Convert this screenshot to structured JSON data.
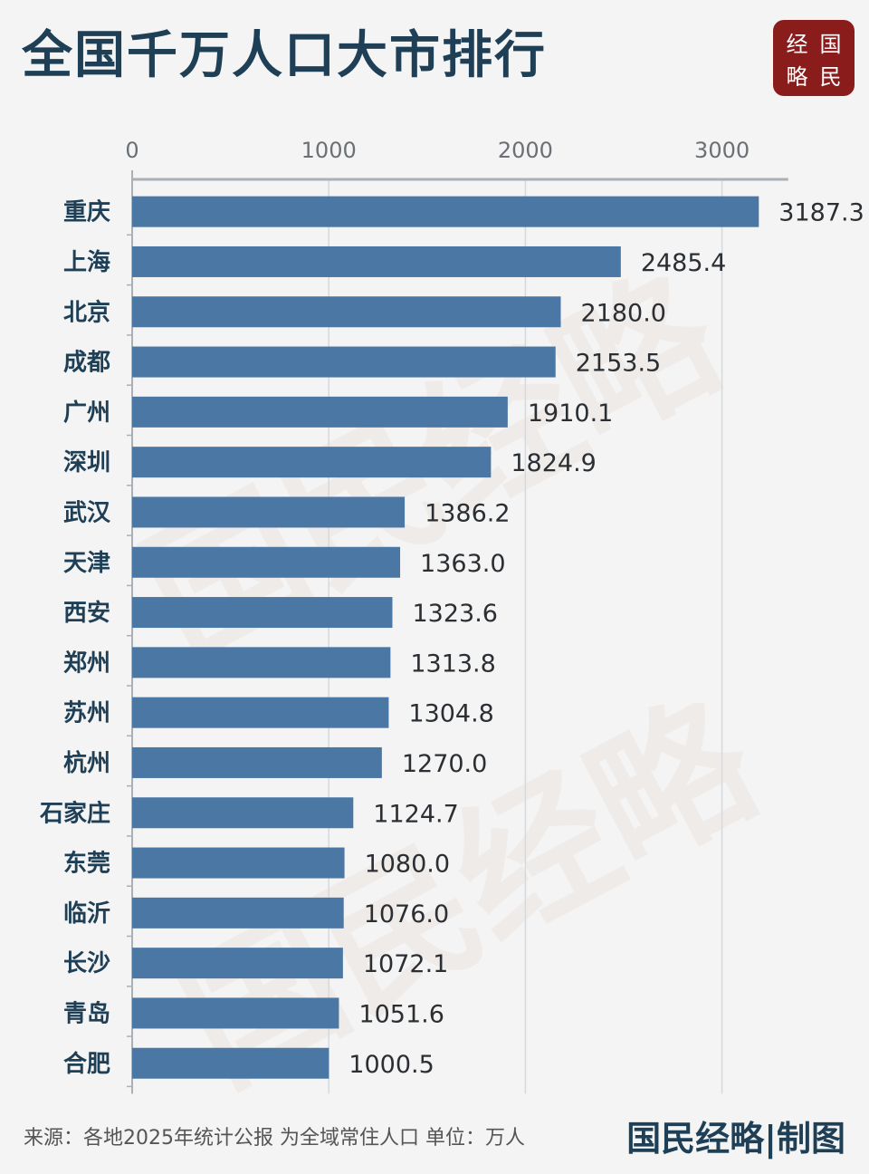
{
  "header": {
    "title": "全国千万人口大市排行",
    "logo": [
      "经",
      "国",
      "略",
      "民"
    ]
  },
  "watermark": {
    "text": "国民经略"
  },
  "chart_data": {
    "type": "bar",
    "orientation": "horizontal",
    "title": "全国千万人口大市排行",
    "xlabel": "",
    "ylabel": "",
    "xlim": [
      0,
      3300
    ],
    "x_ticks": [
      0,
      1000,
      2000,
      3000
    ],
    "x_tick_labels": [
      "0",
      "1000",
      "2000",
      "3000"
    ],
    "grid": true,
    "bar_color": "#4b77a4",
    "categories": [
      "重庆",
      "上海",
      "北京",
      "成都",
      "广州",
      "深圳",
      "武汉",
      "天津",
      "西安",
      "郑州",
      "苏州",
      "杭州",
      "石家庄",
      "东莞",
      "临沂",
      "长沙",
      "青岛",
      "合肥"
    ],
    "values": [
      3187.3,
      2485.4,
      2180.0,
      2153.5,
      1910.1,
      1824.9,
      1386.2,
      1363.0,
      1323.6,
      1313.8,
      1304.8,
      1270.0,
      1124.7,
      1080.0,
      1076.0,
      1072.1,
      1051.6,
      1000.5
    ],
    "value_labels": [
      "3187.3",
      "2485.4",
      "2180.0",
      "2153.5",
      "1910.1",
      "1824.9",
      "1386.2",
      "1363.0",
      "1323.6",
      "1313.8",
      "1304.8",
      "1270.0",
      "1124.7",
      "1080.0",
      "1076.0",
      "1072.1",
      "1051.6",
      "1000.5"
    ]
  },
  "footer": {
    "source": "来源：各地2025年统计公报 为全域常住人口 单位：万人",
    "brand": "国民经略|制图"
  }
}
